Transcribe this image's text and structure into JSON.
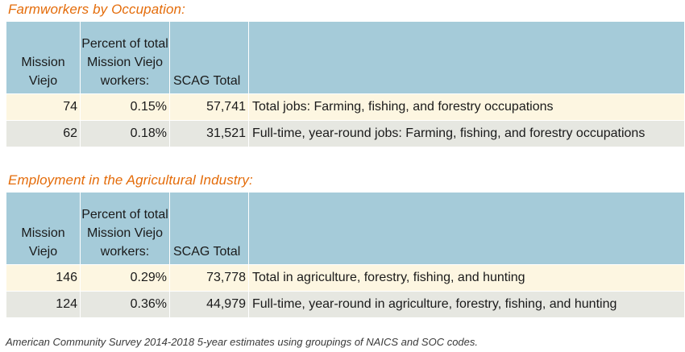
{
  "sections": [
    {
      "title": "Farmworkers by Occupation:",
      "headers": {
        "col1": "Mission Viejo",
        "col2": "Percent of total Mission Viejo workers:",
        "col3": "SCAG Total",
        "col4": ""
      },
      "rows": [
        {
          "mission_viejo": "74",
          "percent": "0.15%",
          "scag_total": "57,741",
          "description": "Total jobs: Farming, fishing, and forestry occupations"
        },
        {
          "mission_viejo": "62",
          "percent": "0.18%",
          "scag_total": "31,521",
          "description": "Full-time, year-round jobs: Farming, fishing, and forestry occupations"
        }
      ]
    },
    {
      "title": "Employment in the Agricultural Industry:",
      "headers": {
        "col1": "Mission Viejo",
        "col2": "Percent of total Mission Viejo workers:",
        "col3": "SCAG Total",
        "col4": ""
      },
      "rows": [
        {
          "mission_viejo": "146",
          "percent": "0.29%",
          "scag_total": "73,778",
          "description": "Total in agriculture, forestry, fishing, and hunting"
        },
        {
          "mission_viejo": "124",
          "percent": "0.36%",
          "scag_total": "44,979",
          "description": "Full-time, year-round in agriculture, forestry, fishing, and hunting"
        }
      ]
    }
  ],
  "source_note": "American Community Survey 2014-2018 5-year estimates using groupings of NAICS and SOC codes.",
  "colors": {
    "title": "#e46c0a",
    "header_bg": "#a5cbd9",
    "row_a_bg": "#fdf6e1",
    "row_b_bg": "#e6e7e1"
  }
}
